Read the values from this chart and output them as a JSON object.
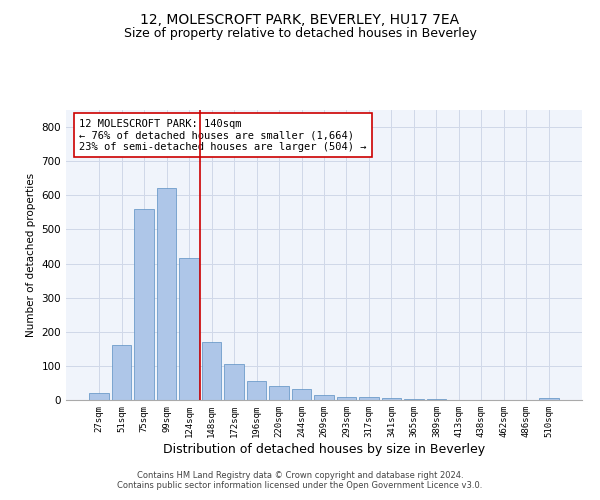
{
  "title": "12, MOLESCROFT PARK, BEVERLEY, HU17 7EA",
  "subtitle": "Size of property relative to detached houses in Beverley",
  "xlabel": "Distribution of detached houses by size in Beverley",
  "ylabel": "Number of detached properties",
  "footnote": "Contains HM Land Registry data © Crown copyright and database right 2024.\nContains public sector information licensed under the Open Government Licence v3.0.",
  "bar_color": "#aec6e8",
  "bar_edge_color": "#5a8fc2",
  "categories": [
    "27sqm",
    "51sqm",
    "75sqm",
    "99sqm",
    "124sqm",
    "148sqm",
    "172sqm",
    "196sqm",
    "220sqm",
    "244sqm",
    "269sqm",
    "293sqm",
    "317sqm",
    "341sqm",
    "365sqm",
    "389sqm",
    "413sqm",
    "438sqm",
    "462sqm",
    "486sqm",
    "510sqm"
  ],
  "values": [
    20,
    160,
    560,
    620,
    415,
    170,
    105,
    55,
    42,
    32,
    14,
    10,
    9,
    5,
    4,
    2,
    0,
    0,
    0,
    0,
    7
  ],
  "ylim": [
    0,
    850
  ],
  "yticks": [
    0,
    100,
    200,
    300,
    400,
    500,
    600,
    700,
    800
  ],
  "vline_x": 4.5,
  "vline_color": "#cc0000",
  "annotation_text": "12 MOLESCROFT PARK: 140sqm\n← 76% of detached houses are smaller (1,664)\n23% of semi-detached houses are larger (504) →",
  "annotation_box_color": "#cc0000",
  "grid_color": "#d0d8e8",
  "background_color": "#f0f4fb",
  "title_fontsize": 10,
  "subtitle_fontsize": 9,
  "annotation_fontsize": 7.5,
  "ylabel_fontsize": 7.5,
  "xlabel_fontsize": 9,
  "footnote_fontsize": 6,
  "ytick_fontsize": 7.5,
  "xtick_fontsize": 6.5
}
